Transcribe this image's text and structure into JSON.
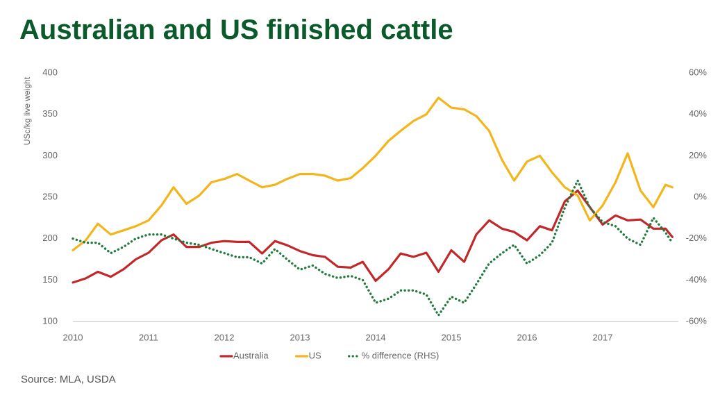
{
  "chart_data": {
    "type": "line",
    "title": "Australian and US finished cattle",
    "y_label": "USc/kg live weight",
    "source": "Source: MLA, USDA",
    "x": [
      2010,
      2010.17,
      2010.33,
      2010.5,
      2010.67,
      2010.83,
      2011,
      2011.17,
      2011.33,
      2011.5,
      2011.67,
      2011.83,
      2012,
      2012.17,
      2012.33,
      2012.5,
      2012.67,
      2012.83,
      2013,
      2013.17,
      2013.33,
      2013.5,
      2013.67,
      2013.83,
      2014,
      2014.17,
      2014.33,
      2014.5,
      2014.67,
      2014.83,
      2015,
      2015.17,
      2015.33,
      2015.5,
      2015.67,
      2015.83,
      2016,
      2016.17,
      2016.33,
      2016.5,
      2016.67,
      2016.83,
      2017,
      2017.17,
      2017.33,
      2017.5,
      2017.67,
      2017.83,
      2017.92
    ],
    "series": [
      {
        "name": "Australia",
        "color": "#c0282a",
        "style": "solid",
        "values": [
          147,
          152,
          160,
          154,
          163,
          175,
          183,
          198,
          205,
          190,
          190,
          195,
          197,
          196,
          196,
          182,
          197,
          192,
          185,
          180,
          178,
          166,
          165,
          172,
          149,
          163,
          182,
          178,
          183,
          160,
          186,
          172,
          205,
          222,
          212,
          208,
          198,
          215,
          210,
          245,
          258,
          238,
          217,
          228,
          222,
          223,
          212,
          212,
          202
        ]
      },
      {
        "name": "US",
        "color": "#f2b61c",
        "style": "solid",
        "values": [
          186,
          198,
          218,
          205,
          210,
          215,
          222,
          240,
          262,
          242,
          252,
          268,
          272,
          278,
          270,
          262,
          265,
          272,
          278,
          278,
          276,
          270,
          273,
          285,
          300,
          318,
          330,
          342,
          350,
          370,
          358,
          356,
          348,
          330,
          295,
          270,
          293,
          300,
          280,
          262,
          252,
          222,
          240,
          268,
          303,
          258,
          238,
          265,
          262
        ]
      },
      {
        "name": "% difference (RHS)",
        "color": "#1f7a3c",
        "style": "dotted",
        "axis": "y2",
        "values": [
          -20,
          -22,
          -22,
          -27,
          -24,
          -20,
          -18,
          -18,
          -20,
          -22,
          -23,
          -25,
          -27,
          -29,
          -29,
          -32,
          -25,
          -30,
          -35,
          -33,
          -37,
          -39,
          -38,
          -40,
          -51,
          -49,
          -45,
          -45,
          -47,
          -57,
          -48,
          -51,
          -42,
          -32,
          -27,
          -23,
          -32,
          -28,
          -22,
          -5,
          8,
          -5,
          -12,
          -14,
          -20,
          -23,
          -10,
          -17,
          -22
        ]
      }
    ],
    "xlim": [
      2010,
      2018
    ],
    "xticks": [
      2010,
      2011,
      2012,
      2013,
      2014,
      2015,
      2016,
      2017
    ],
    "ylim": [
      100,
      400
    ],
    "yticks": [
      100,
      150,
      200,
      250,
      300,
      350,
      400
    ],
    "y2lim": [
      -60,
      60
    ],
    "y2ticks": [
      {
        "value": -60,
        "label": "-60%"
      },
      {
        "value": -40,
        "label": "-40%"
      },
      {
        "value": -20,
        "label": "-20%"
      },
      {
        "value": 0,
        "label": "0%"
      },
      {
        "value": 20,
        "label": "20%"
      },
      {
        "value": 40,
        "label": "40%"
      },
      {
        "value": 60,
        "label": "60%"
      }
    ],
    "grid": false,
    "legend": "bottom"
  }
}
